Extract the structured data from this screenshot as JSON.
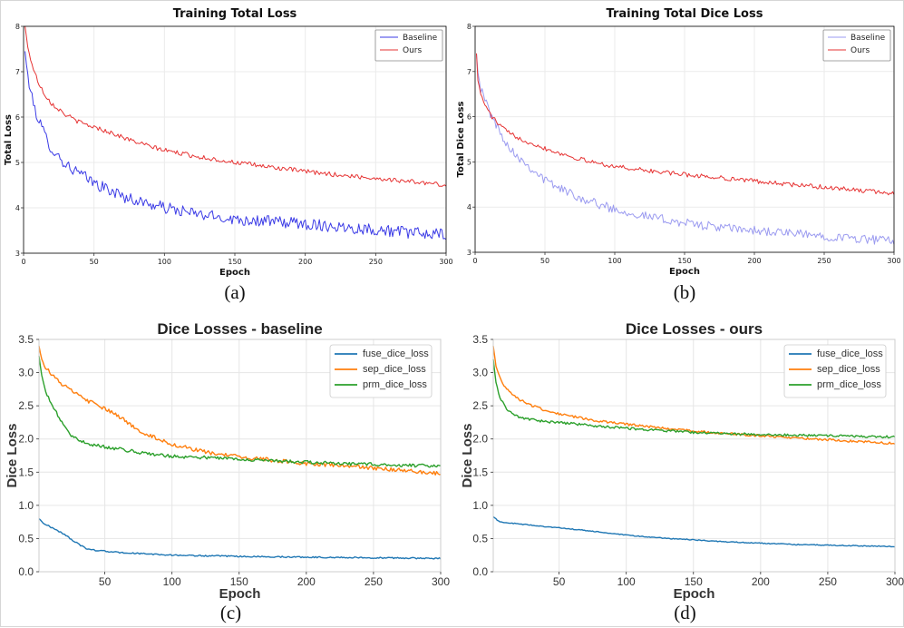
{
  "chart_data": [
    {
      "id": "a",
      "type": "line",
      "style": "small",
      "title": "Training Total Loss",
      "xlabel": "Epoch",
      "ylabel": "Total Loss",
      "xlim": [
        0,
        300
      ],
      "ylim": [
        3,
        8
      ],
      "xticks": [
        0,
        50,
        100,
        150,
        200,
        250,
        300
      ],
      "yticks": [
        3,
        4,
        5,
        6,
        7,
        8
      ],
      "ytick_decimals": 0,
      "caption": "(a)",
      "legend_position": "top-right",
      "series": [
        {
          "name": "Baseline",
          "color": "#3b3be6",
          "noise": 0.13,
          "x": [
            1,
            3,
            6,
            10,
            15,
            20,
            30,
            40,
            50,
            60,
            75,
            90,
            100,
            125,
            150,
            175,
            200,
            225,
            250,
            275,
            300
          ],
          "values": [
            7.45,
            6.9,
            6.4,
            6.0,
            5.6,
            5.3,
            4.95,
            4.75,
            4.55,
            4.4,
            4.2,
            4.08,
            4.0,
            3.85,
            3.75,
            3.7,
            3.65,
            3.58,
            3.52,
            3.45,
            3.4
          ]
        },
        {
          "name": "Ours",
          "color": "#e63333",
          "noise": 0.05,
          "x": [
            1,
            3,
            6,
            10,
            15,
            20,
            30,
            40,
            50,
            60,
            75,
            90,
            100,
            125,
            150,
            175,
            200,
            225,
            250,
            275,
            300
          ],
          "values": [
            8.0,
            7.55,
            7.15,
            6.8,
            6.5,
            6.3,
            6.05,
            5.88,
            5.78,
            5.68,
            5.5,
            5.35,
            5.27,
            5.12,
            5.0,
            4.9,
            4.8,
            4.72,
            4.65,
            4.58,
            4.5
          ]
        }
      ]
    },
    {
      "id": "b",
      "type": "line",
      "style": "small",
      "title": "Training Total Dice Loss",
      "xlabel": "Epoch",
      "ylabel": "Total Dice Loss",
      "xlim": [
        0,
        300
      ],
      "ylim": [
        3,
        8
      ],
      "xticks": [
        0,
        50,
        100,
        150,
        200,
        250,
        300
      ],
      "yticks": [
        3,
        4,
        5,
        6,
        7,
        8
      ],
      "ytick_decimals": 0,
      "caption": "(b)",
      "legend_position": "top-right",
      "series": [
        {
          "name": "Baseline",
          "color": "#9b9bf0",
          "noise": 0.1,
          "x": [
            1,
            2,
            4,
            8,
            12,
            18,
            25,
            35,
            50,
            65,
            80,
            100,
            125,
            150,
            175,
            200,
            225,
            250,
            275,
            300
          ],
          "values": [
            7.4,
            7.0,
            6.6,
            6.3,
            6.0,
            5.65,
            5.3,
            5.0,
            4.6,
            4.35,
            4.15,
            3.95,
            3.78,
            3.65,
            3.55,
            3.48,
            3.42,
            3.36,
            3.3,
            3.25
          ]
        },
        {
          "name": "Ours",
          "color": "#e63333",
          "noise": 0.05,
          "x": [
            1,
            2,
            4,
            8,
            12,
            18,
            25,
            35,
            50,
            65,
            80,
            100,
            125,
            150,
            175,
            200,
            225,
            250,
            275,
            300
          ],
          "values": [
            7.4,
            6.8,
            6.5,
            6.2,
            6.0,
            5.8,
            5.62,
            5.48,
            5.3,
            5.15,
            5.02,
            4.9,
            4.8,
            4.72,
            4.65,
            4.58,
            4.5,
            4.44,
            4.37,
            4.3
          ]
        }
      ]
    },
    {
      "id": "c",
      "type": "line",
      "style": "large",
      "title": "Dice Losses - baseline",
      "xlabel": "Epoch",
      "ylabel": "Dice Loss",
      "xlim": [
        1,
        300
      ],
      "ylim": [
        0,
        3.5
      ],
      "xticks": [
        50,
        100,
        150,
        200,
        250,
        300
      ],
      "yticks": [
        0,
        0.5,
        1.0,
        1.5,
        2.0,
        2.5,
        3.0,
        3.5
      ],
      "ytick_decimals": 1,
      "caption": "(c)",
      "legend_position": "top-right",
      "series": [
        {
          "name": "fuse_dice_loss",
          "color": "#1f77b4",
          "noise": 0.01,
          "x": [
            1,
            5,
            10,
            15,
            20,
            25,
            30,
            35,
            40,
            50,
            60,
            80,
            100,
            150,
            200,
            250,
            300
          ],
          "values": [
            0.8,
            0.72,
            0.67,
            0.62,
            0.56,
            0.49,
            0.42,
            0.36,
            0.33,
            0.31,
            0.29,
            0.27,
            0.25,
            0.23,
            0.22,
            0.21,
            0.2
          ]
        },
        {
          "name": "sep_dice_loss",
          "color": "#ff7f0e",
          "noise": 0.03,
          "x": [
            1,
            3,
            6,
            10,
            15,
            20,
            30,
            40,
            50,
            60,
            70,
            80,
            100,
            125,
            150,
            175,
            200,
            225,
            250,
            275,
            300
          ],
          "values": [
            3.4,
            3.2,
            3.08,
            2.98,
            2.88,
            2.8,
            2.66,
            2.55,
            2.45,
            2.35,
            2.2,
            2.08,
            1.92,
            1.8,
            1.73,
            1.68,
            1.63,
            1.6,
            1.56,
            1.52,
            1.48
          ]
        },
        {
          "name": "prm_dice_loss",
          "color": "#2ca02c",
          "noise": 0.025,
          "x": [
            1,
            3,
            6,
            10,
            15,
            20,
            25,
            30,
            40,
            50,
            60,
            75,
            90,
            100,
            125,
            150,
            175,
            200,
            225,
            250,
            275,
            300
          ],
          "values": [
            3.25,
            2.95,
            2.7,
            2.55,
            2.35,
            2.2,
            2.05,
            1.98,
            1.92,
            1.88,
            1.85,
            1.8,
            1.76,
            1.74,
            1.72,
            1.7,
            1.67,
            1.65,
            1.63,
            1.62,
            1.6,
            1.6
          ]
        }
      ]
    },
    {
      "id": "d",
      "type": "line",
      "style": "large",
      "title": "Dice Losses - ours",
      "xlabel": "Epoch",
      "ylabel": "Dice Loss",
      "xlim": [
        1,
        300
      ],
      "ylim": [
        0,
        3.5
      ],
      "xticks": [
        50,
        100,
        150,
        200,
        250,
        300
      ],
      "yticks": [
        0,
        0.5,
        1.0,
        1.5,
        2.0,
        2.5,
        3.0,
        3.5
      ],
      "ytick_decimals": 1,
      "caption": "(d)",
      "legend_position": "top-right",
      "series": [
        {
          "name": "fuse_dice_loss",
          "color": "#1f77b4",
          "noise": 0.007,
          "x": [
            1,
            5,
            10,
            20,
            30,
            50,
            75,
            100,
            125,
            150,
            175,
            200,
            225,
            250,
            275,
            300
          ],
          "values": [
            0.83,
            0.76,
            0.74,
            0.72,
            0.7,
            0.66,
            0.61,
            0.55,
            0.51,
            0.48,
            0.45,
            0.43,
            0.41,
            0.4,
            0.39,
            0.38
          ]
        },
        {
          "name": "sep_dice_loss",
          "color": "#ff7f0e",
          "noise": 0.018,
          "x": [
            1,
            3,
            6,
            10,
            15,
            20,
            30,
            40,
            50,
            60,
            75,
            100,
            125,
            150,
            175,
            200,
            225,
            250,
            275,
            300
          ],
          "values": [
            3.4,
            3.1,
            2.92,
            2.78,
            2.68,
            2.6,
            2.5,
            2.43,
            2.38,
            2.34,
            2.28,
            2.22,
            2.17,
            2.12,
            2.08,
            2.05,
            2.02,
            1.99,
            1.96,
            1.93
          ]
        },
        {
          "name": "prm_dice_loss",
          "color": "#2ca02c",
          "noise": 0.018,
          "x": [
            1,
            3,
            6,
            10,
            15,
            20,
            30,
            40,
            50,
            60,
            75,
            100,
            125,
            150,
            175,
            200,
            225,
            250,
            275,
            300
          ],
          "values": [
            3.2,
            2.85,
            2.62,
            2.48,
            2.38,
            2.33,
            2.29,
            2.26,
            2.25,
            2.23,
            2.2,
            2.16,
            2.13,
            2.1,
            2.08,
            2.07,
            2.06,
            2.05,
            2.04,
            2.03
          ]
        }
      ]
    }
  ]
}
